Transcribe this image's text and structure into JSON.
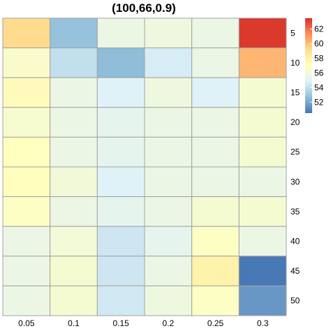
{
  "chart_data": {
    "type": "heatmap",
    "title": "(100,66,0.9)",
    "x_categories": [
      "0.05",
      "0.1",
      "0.15",
      "0.2",
      "0.25",
      "0.3"
    ],
    "y_categories": [
      "5",
      "10",
      "15",
      "20",
      "25",
      "30",
      "35",
      "40",
      "45",
      "50"
    ],
    "values": [
      [
        59.3,
        52.8,
        55.6,
        55.8,
        55.6,
        63.3
      ],
      [
        56.5,
        54.0,
        52.6,
        54.6,
        55.6,
        60.3
      ],
      [
        57.2,
        55.6,
        54.8,
        55.8,
        54.8,
        56.3
      ],
      [
        56.4,
        55.6,
        55.2,
        55.6,
        55.6,
        56.3
      ],
      [
        57.0,
        55.6,
        55.2,
        55.6,
        55.6,
        56.3
      ],
      [
        57.1,
        56.0,
        54.8,
        55.6,
        55.6,
        55.6
      ],
      [
        56.8,
        55.6,
        55.2,
        55.6,
        56.3,
        56.3
      ],
      [
        55.6,
        56.1,
        54.3,
        55.2,
        56.8,
        55.6
      ],
      [
        55.6,
        56.3,
        54.3,
        55.6,
        57.9,
        50.6
      ],
      [
        55.6,
        56.3,
        54.4,
        55.8,
        56.8,
        51.5
      ]
    ],
    "color_scale": {
      "min": 50.5,
      "max": 63.5,
      "ticks": [
        52,
        54,
        56,
        58,
        60,
        62
      ],
      "stops": [
        "#4575b4",
        "#91bfdb",
        "#e0f3f8",
        "#ffffbf",
        "#fee090",
        "#fc8d59",
        "#d73027"
      ]
    },
    "legend_position": "top-right",
    "x_axis_position": "bottom",
    "y_axis_position": "right",
    "grid": true
  }
}
